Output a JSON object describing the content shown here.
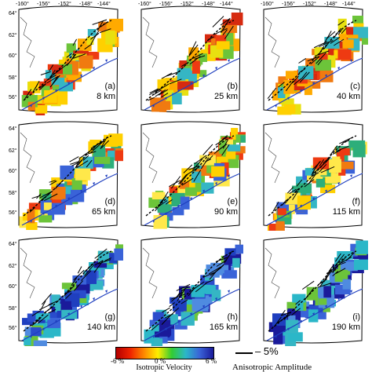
{
  "panels": [
    {
      "tag": "(a)",
      "depth": "8 km",
      "velocity_trend": "slow"
    },
    {
      "tag": "(b)",
      "depth": "25 km",
      "velocity_trend": "slow"
    },
    {
      "tag": "(c)",
      "depth": "40 km",
      "velocity_trend": "slow"
    },
    {
      "tag": "(d)",
      "depth": "65 km",
      "velocity_trend": "mixed"
    },
    {
      "tag": "(e)",
      "depth": "90 km",
      "velocity_trend": "mixed"
    },
    {
      "tag": "(f)",
      "depth": "115 km",
      "velocity_trend": "mixed"
    },
    {
      "tag": "(g)",
      "depth": "140 km",
      "velocity_trend": "fast"
    },
    {
      "tag": "(h)",
      "depth": "165 km",
      "velocity_trend": "fast"
    },
    {
      "tag": "(i)",
      "depth": "190 km",
      "velocity_trend": "fast"
    }
  ],
  "longitude_labels": [
    "-160°",
    "-156°",
    "-152°",
    "-148°",
    "-144°"
  ],
  "latitude_labels": [
    "64°",
    "62°",
    "60°",
    "58°",
    "56°"
  ],
  "colorbar": {
    "title": "Isotropic Velocity",
    "tick_labels": [
      "-6 %",
      "0 %",
      "6 %"
    ],
    "range": [
      -6,
      6
    ],
    "colors": [
      "#b30000",
      "#ee2200",
      "#ff8800",
      "#ffee00",
      "#33cc33",
      "#2bb7c8",
      "#3a63d8",
      "#1a1a9a"
    ]
  },
  "anisotropy_scale": {
    "value": "5%",
    "title": "Anisotropic Amplitude"
  },
  "map_colors": {
    "trench": "#1f3fbf",
    "coast": "#444444",
    "frame": "#000000"
  }
}
